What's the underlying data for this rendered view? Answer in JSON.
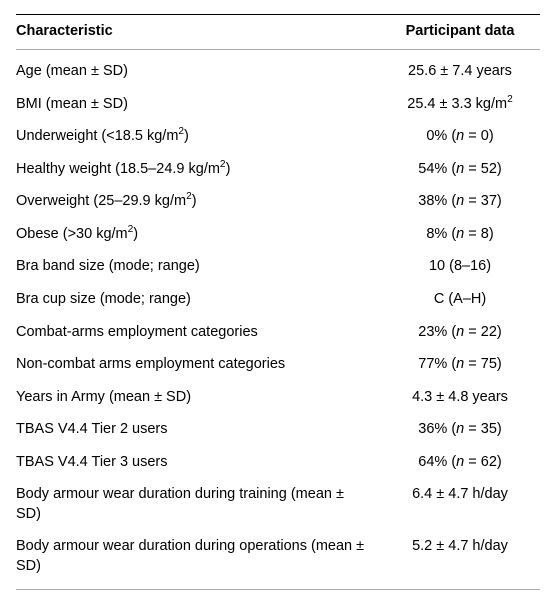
{
  "header": {
    "col1": "Characteristic",
    "col2": "Participant data"
  },
  "rows": [
    {
      "char": "Age (mean ± SD)",
      "val": "25.6 ± 7.4 years"
    },
    {
      "char": "BMI (mean ± SD)",
      "val": "25.4 ± 3.3 kg/m<span class=\"sup\">2</span>"
    },
    {
      "char": "Underweight (<18.5 kg/m<span class=\"sup\">2</span>)",
      "val": "0% (<span class=\"ital\">n</span> = 0)"
    },
    {
      "char": "Healthy weight (18.5–24.9 kg/m<span class=\"sup\">2</span>)",
      "val": "54% (<span class=\"ital\">n</span> = 52)"
    },
    {
      "char": "Overweight (25–29.9 kg/m<span class=\"sup\">2</span>)",
      "val": "38% (<span class=\"ital\">n</span> = 37)"
    },
    {
      "char": "Obese (>30 kg/m<span class=\"sup\">2</span>)",
      "val": "8% (<span class=\"ital\">n</span> = 8)"
    },
    {
      "char": "Bra band size (mode; range)",
      "val": "10 (8–16)"
    },
    {
      "char": "Bra cup size (mode; range)",
      "val": "C (A–H)"
    },
    {
      "char": "Combat-arms employment categories",
      "val": "23% (<span class=\"ital\">n</span> = 22)"
    },
    {
      "char": "Non-combat arms employment categories",
      "val": "77% (<span class=\"ital\">n</span> = 75)"
    },
    {
      "char": "Years in Army (mean ± SD)",
      "val": "4.3 ± 4.8 years"
    },
    {
      "char": "TBAS V4.4 Tier 2 users",
      "val": "36% (<span class=\"ital\">n</span> = 35)"
    },
    {
      "char": "TBAS V4.4 Tier 3 users",
      "val": "64% (<span class=\"ital\">n</span> = 62)"
    },
    {
      "char": "Body armour wear duration during training (mean ± SD)",
      "val": "6.4 ± 4.7 h/day"
    },
    {
      "char": "Body armour wear duration during operations (mean ± SD)",
      "val": "5.2 ± 4.7 h/day"
    }
  ]
}
